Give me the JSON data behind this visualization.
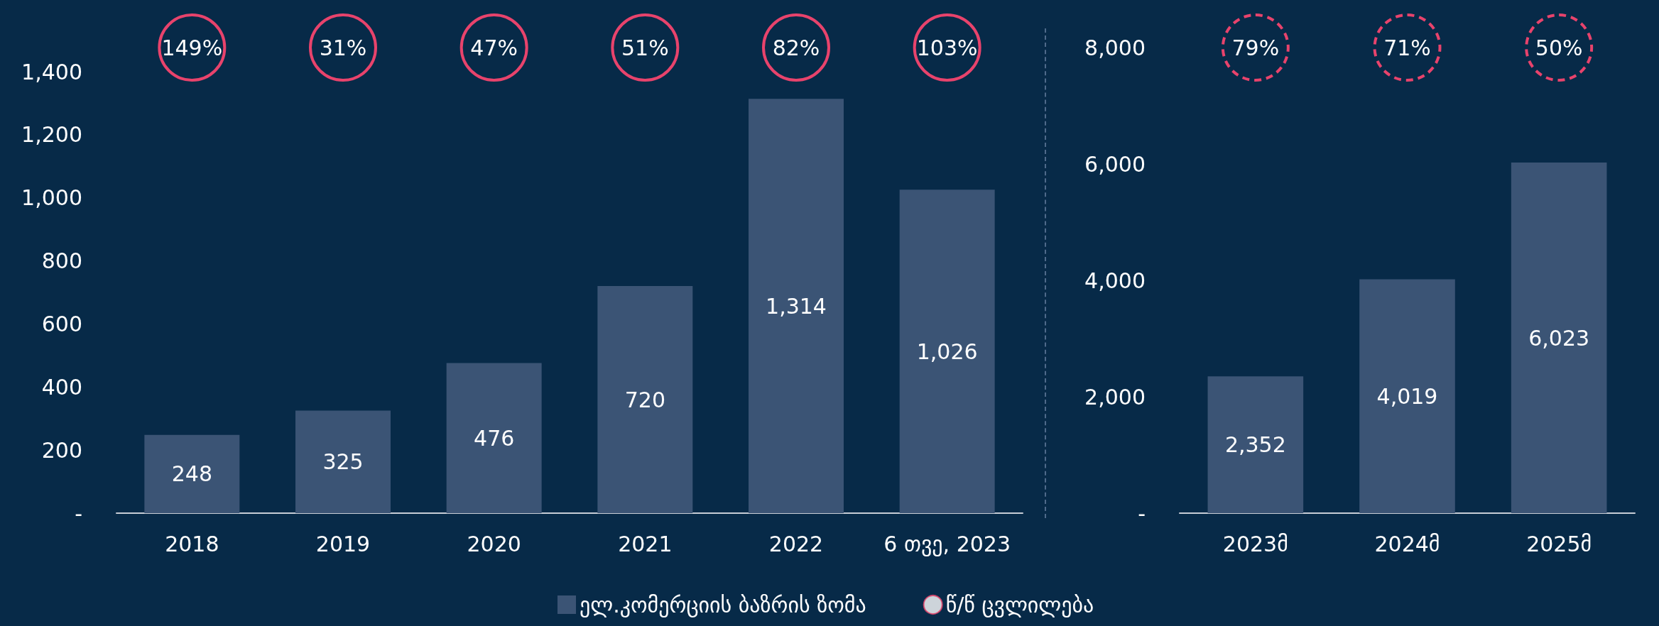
{
  "chart_data": [
    {
      "type": "bar",
      "categories": [
        "2018",
        "2019",
        "2020",
        "2021",
        "2022",
        "6 თვე, 2023"
      ],
      "series": [
        {
          "name": "ელ.კომერციის ბაზრის ზომა",
          "color": "#3b5475",
          "values": [
            248,
            325,
            476,
            720,
            1314,
            1026
          ],
          "value_labels": [
            "248",
            "325",
            "476",
            "720",
            "1,314",
            "1,026"
          ]
        },
        {
          "name": "წ/წ ცვლილება",
          "type": "scatter",
          "color": "#e8436c",
          "values": [
            null,
            null,
            null,
            null,
            null,
            null
          ]
        }
      ],
      "ylim": [
        0,
        1400
      ],
      "yticks": [
        {
          "value": 0,
          "label": "-"
        },
        200,
        400,
        600,
        800,
        {
          "value": 1000,
          "label": "1,000"
        },
        {
          "value": 1200,
          "label": "1,200"
        },
        {
          "value": 1400,
          "label": "1,400"
        }
      ],
      "grid": false,
      "legend": "bottom",
      "annotations": [
        "149%",
        "31%",
        "47%",
        "51%",
        "82%",
        "103%"
      ]
    },
    {
      "type": "bar",
      "categories": [
        "2023მ",
        "2024მ",
        "2025მ"
      ],
      "series": [
        {
          "color": "#3b5475",
          "values": [
            2352,
            4019,
            6023
          ],
          "value_labels": [
            "2,352",
            "4,019",
            "6,023"
          ]
        }
      ],
      "ylim": [
        0,
        8000
      ],
      "yticks": [
        {
          "value": 0,
          "label": "-"
        },
        {
          "value": 2000,
          "label": "2,000"
        },
        {
          "value": 4000,
          "label": "4,000"
        },
        {
          "value": 6000,
          "label": "6,000"
        },
        {
          "value": 8000,
          "label": "8,000"
        }
      ],
      "grid": false,
      "line_style": "dashed",
      "annotations": [
        "79%",
        "71%",
        "50%"
      ]
    }
  ]
}
